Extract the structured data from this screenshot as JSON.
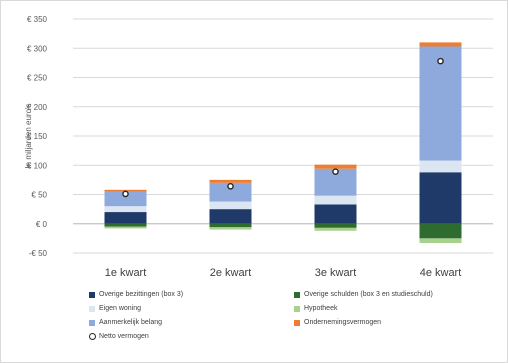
{
  "chart_data": {
    "type": "bar",
    "stacked": true,
    "title": "",
    "xlabel": "",
    "ylabel": "In miljarden euro's",
    "ylim": [
      -50,
      350
    ],
    "yticks": [
      -50,
      0,
      50,
      100,
      150,
      200,
      250,
      300,
      350
    ],
    "ytick_labels": [
      "-€ 50",
      "€ 0",
      "€ 50",
      "€ 100",
      "€ 150",
      "€ 200",
      "€ 250",
      "€ 300",
      "€ 350"
    ],
    "grid": true,
    "legend_position": "bottom",
    "categories": [
      "1e kwart",
      "2e kwart",
      "3e kwart",
      "4e kwart"
    ],
    "series": [
      {
        "name": "Overige bezittingen (box 3)",
        "color": "#1f3a68",
        "values": [
          20,
          25,
          33,
          88
        ]
      },
      {
        "name": "Overige schulden (box 3 en studieschuld)",
        "color": "#2e6b2e",
        "values": [
          -5,
          -6,
          -7,
          -25
        ]
      },
      {
        "name": "Eigen woning",
        "color": "#dce6f2",
        "values": [
          10,
          13,
          15,
          20
        ]
      },
      {
        "name": "Hypotheek",
        "color": "#a9d18e",
        "values": [
          -3,
          -4,
          -5,
          -8
        ]
      },
      {
        "name": "Aanmerkelijk belang",
        "color": "#8ea9db",
        "values": [
          25,
          32,
          46,
          195
        ]
      },
      {
        "name": "Ondernemingsvermogen",
        "color": "#ed7d31",
        "values": [
          3,
          5,
          7,
          7
        ]
      },
      {
        "name": "Netto vermogen",
        "type": "marker",
        "values": [
          51,
          64,
          89,
          278
        ]
      }
    ]
  }
}
